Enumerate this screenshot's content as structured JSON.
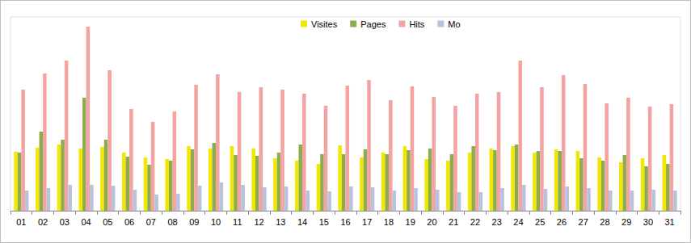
{
  "chart_data": {
    "type": "bar",
    "categories": [
      "01",
      "02",
      "03",
      "04",
      "05",
      "06",
      "07",
      "08",
      "09",
      "10",
      "11",
      "12",
      "13",
      "14",
      "15",
      "16",
      "17",
      "18",
      "19",
      "20",
      "21",
      "22",
      "23",
      "24",
      "25",
      "26",
      "27",
      "28",
      "29",
      "30",
      "31"
    ],
    "series": [
      {
        "name": "Visites",
        "color": "#f2e700",
        "values": [
          73,
          78,
          82,
          77,
          79,
          72,
          66,
          64,
          80,
          77,
          80,
          77,
          65,
          62,
          58,
          81,
          66,
          72,
          80,
          64,
          62,
          72,
          77,
          80,
          72,
          76,
          74,
          66,
          60,
          65,
          69
        ]
      },
      {
        "name": "Pages",
        "color": "#8eac4e",
        "values": [
          72,
          98,
          88,
          140,
          88,
          67,
          57,
          62,
          76,
          84,
          69,
          68,
          72,
          82,
          70,
          70,
          76,
          70,
          75,
          77,
          70,
          80,
          75,
          82,
          74,
          74,
          65,
          62,
          69,
          55,
          58
        ]
      },
      {
        "name": "Hits",
        "color": "#f4a3a3",
        "values": [
          150,
          170,
          186,
          228,
          174,
          126,
          110,
          123,
          156,
          169,
          147,
          153,
          150,
          145,
          130,
          155,
          162,
          137,
          154,
          141,
          130,
          145,
          147,
          186,
          153,
          168,
          157,
          133,
          140,
          129,
          132
        ]
      },
      {
        "name": "Mo",
        "color": "#b7c3dd",
        "values": [
          25,
          28,
          32,
          32,
          31,
          26,
          20,
          21,
          31,
          35,
          32,
          29,
          30,
          25,
          24,
          30,
          29,
          25,
          28,
          26,
          23,
          23,
          28,
          32,
          27,
          30,
          28,
          25,
          25,
          26,
          25
        ]
      }
    ],
    "ylim": [
      0,
      240
    ],
    "grid": false,
    "legend": "top",
    "tick_labels": "x"
  }
}
